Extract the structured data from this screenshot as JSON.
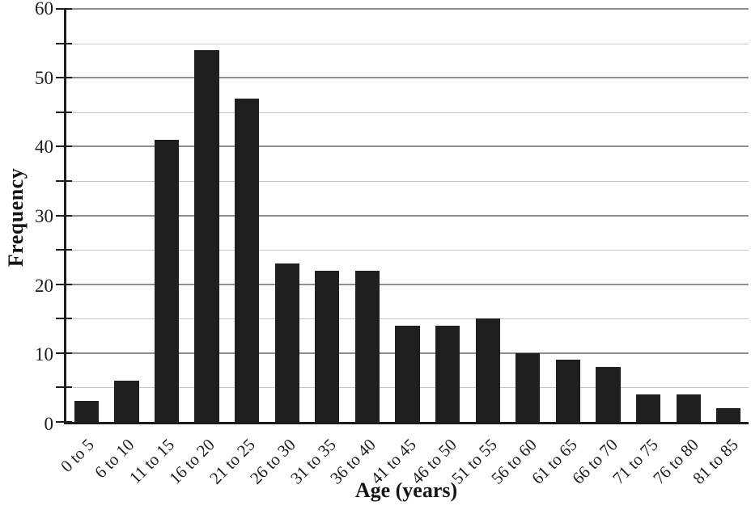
{
  "chart_data": {
    "type": "bar",
    "title": "",
    "xlabel": "Age (years)",
    "ylabel": "Frequency",
    "categories": [
      "0 to 5",
      "6 to 10",
      "11 to 15",
      "16 to 20",
      "21 to 25",
      "26 to 30",
      "31 to 35",
      "36 to 40",
      "41 to 45",
      "46 to 50",
      "51 to 55",
      "56 to 60",
      "61 to 65",
      "66 to 70",
      "71 to 75",
      "76 to 80",
      "81 to 85"
    ],
    "values": [
      3,
      6,
      41,
      54,
      47,
      23,
      22,
      22,
      14,
      14,
      15,
      10,
      9,
      8,
      4,
      4,
      2
    ],
    "ylim": [
      0,
      60
    ],
    "ytick_labels": [
      0,
      10,
      20,
      30,
      40,
      50,
      60
    ],
    "ytick_minor_step": 5,
    "grid": "horizontal gridlines every 5 units; lines at multiples of 10 darker",
    "legend_position": "none",
    "xtick_rotation_deg": 45,
    "colors": {
      "bar": "#211e1e",
      "axis": "#1c1c1c",
      "grid_major": "#8f8f8f",
      "grid_minor": "#c6c6c6",
      "background": "#ffffff",
      "text": "#1c1c1c"
    }
  }
}
